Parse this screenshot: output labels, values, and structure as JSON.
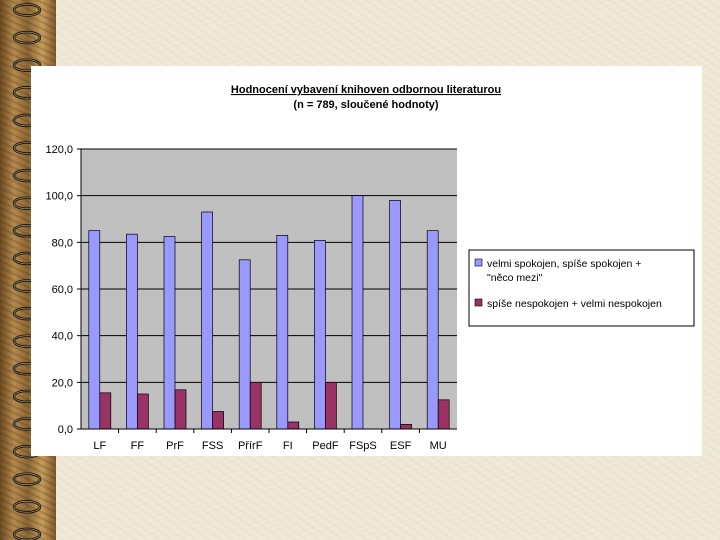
{
  "chart_data": {
    "type": "bar",
    "title": "Hodnocení vybavení knihoven odbornou literaturou",
    "subtitle": "(n = 789, sloučené hodnoty)",
    "categories": [
      "LF",
      "FF",
      "PrF",
      "FSS",
      "PřírF",
      "FI",
      "PedF",
      "FSpS",
      "ESF",
      "MU"
    ],
    "series": [
      {
        "name": "velmi spokojen, spíše spokojen + \"něco mezi\"",
        "legend_lines": [
          "velmi spokojen, spíše spokojen +",
          "\"něco mezi\""
        ],
        "color": "#9999ff",
        "values": [
          85.0,
          83.5,
          82.5,
          93.0,
          72.5,
          83.0,
          80.8,
          100.0,
          98.0,
          85.0
        ]
      },
      {
        "name": "spíše nespokojen + velmi nespokojen",
        "legend_lines": [
          "spíše nespokojen + velmi nespokojen"
        ],
        "color": "#993366",
        "values": [
          15.5,
          15.0,
          16.8,
          7.5,
          20.0,
          3.0,
          20.0,
          0.0,
          2.0,
          12.5
        ]
      }
    ],
    "ylim": [
      0,
      120
    ],
    "yticks": [
      "0,0",
      "20,0",
      "40,0",
      "60,0",
      "80,0",
      "100,0",
      "120,0"
    ],
    "xlabel": "",
    "ylabel": "",
    "grid": true,
    "plot_background": "#c0c0c0",
    "legend_position": "right"
  }
}
